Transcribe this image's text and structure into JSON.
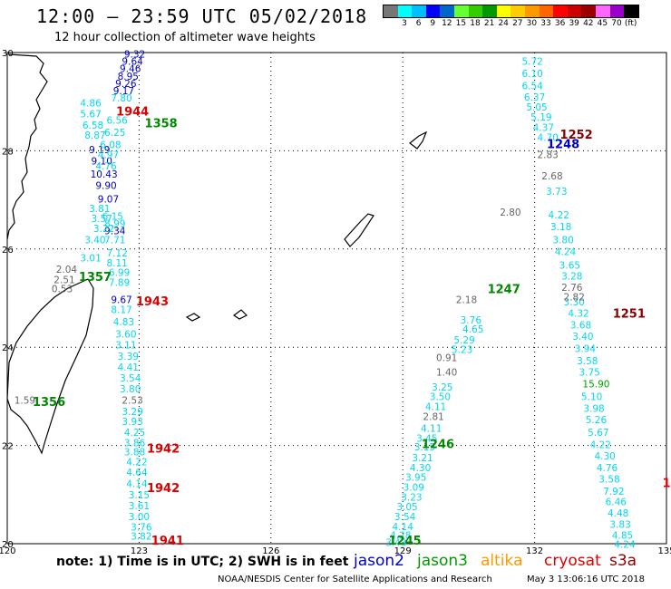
{
  "header": {
    "title": "12:00 – 23:59 UTC 05/02/2018",
    "subtitle": "12 hour collection of altimeter wave heights"
  },
  "scale": {
    "colors": [
      "#777777",
      "#00ffff",
      "#00bfff",
      "#0000ff",
      "#0066cc",
      "#66ff33",
      "#33cc00",
      "#009900",
      "#ffff00",
      "#ffcc00",
      "#ff9900",
      "#ff6600",
      "#ff0000",
      "#cc0000",
      "#990000",
      "#ff66ff",
      "#9900cc",
      "#000000"
    ],
    "labels": [
      "3",
      "6",
      "9",
      "12",
      "15",
      "18",
      "21",
      "24",
      "27",
      "30",
      "33",
      "36",
      "39",
      "42",
      "45",
      "70",
      "(ft)"
    ]
  },
  "map": {
    "lon_range": [
      120,
      135
    ],
    "lat_range": [
      20,
      30
    ],
    "lon_ticks": [
      "120",
      "123",
      "126",
      "129",
      "132",
      "135"
    ],
    "lat_ticks": [
      "30",
      "28",
      "26",
      "24",
      "22",
      "20"
    ],
    "grid": "dotted"
  },
  "tracks": [
    {
      "satellite": "jason2",
      "color": "#0000cc",
      "points": [
        {
          "lon": 122.9,
          "lat": 29.9,
          "v": "9.32"
        },
        {
          "lon": 122.85,
          "lat": 29.75,
          "v": "9.64"
        },
        {
          "lon": 122.8,
          "lat": 29.6,
          "v": "9.46"
        },
        {
          "lon": 122.75,
          "lat": 29.45,
          "v": "8.95"
        },
        {
          "lon": 122.7,
          "lat": 29.3,
          "v": "9.26"
        },
        {
          "lon": 122.65,
          "lat": 29.15,
          "v": "9.17"
        },
        {
          "lon": 122.1,
          "lat": 27.95,
          "v": "9.19"
        },
        {
          "lon": 122.15,
          "lat": 27.72,
          "v": "9.10"
        },
        {
          "lon": 122.2,
          "lat": 27.45,
          "v": "10.43"
        },
        {
          "lon": 122.25,
          "lat": 27.22,
          "v": "9.90"
        },
        {
          "lon": 122.3,
          "lat": 26.95,
          "v": "9.07"
        },
        {
          "lon": 122.45,
          "lat": 26.3,
          "v": "9.34"
        },
        {
          "lon": 122.6,
          "lat": 24.9,
          "v": "9.67"
        }
      ]
    },
    {
      "satellite": "jason3",
      "color": "#00d8f0",
      "points": [
        {
          "lon": 122.6,
          "lat": 29.0,
          "v": "7.80"
        },
        {
          "lon": 121.9,
          "lat": 28.9,
          "v": "4.86"
        },
        {
          "lon": 121.9,
          "lat": 28.68,
          "v": "5.67"
        },
        {
          "lon": 121.95,
          "lat": 28.45,
          "v": "6.58"
        },
        {
          "lon": 122.0,
          "lat": 28.25,
          "v": "8.87"
        },
        {
          "lon": 122.5,
          "lat": 28.55,
          "v": "6.56"
        },
        {
          "lon": 122.45,
          "lat": 28.3,
          "v": "6.25"
        },
        {
          "lon": 122.35,
          "lat": 28.05,
          "v": "6.08"
        },
        {
          "lon": 122.3,
          "lat": 27.85,
          "v": "4.97"
        },
        {
          "lon": 122.25,
          "lat": 27.62,
          "v": "4.76"
        },
        {
          "lon": 122.1,
          "lat": 26.75,
          "v": "3.81"
        },
        {
          "lon": 122.15,
          "lat": 26.55,
          "v": "3.57"
        },
        {
          "lon": 122.2,
          "lat": 26.35,
          "v": "3.22"
        },
        {
          "lon": 122.4,
          "lat": 26.6,
          "v": "6.15"
        },
        {
          "lon": 122.45,
          "lat": 26.45,
          "v": "8.99"
        },
        {
          "lon": 122.0,
          "lat": 26.12,
          "v": "3.40"
        },
        {
          "lon": 122.45,
          "lat": 26.12,
          "v": "7.71"
        },
        {
          "lon": 121.9,
          "lat": 25.75,
          "v": "3.01"
        },
        {
          "lon": 122.5,
          "lat": 25.85,
          "v": "7.12"
        },
        {
          "lon": 122.5,
          "lat": 25.65,
          "v": "8.11"
        },
        {
          "lon": 122.55,
          "lat": 25.45,
          "v": "6.99"
        },
        {
          "lon": 122.55,
          "lat": 25.25,
          "v": "7.89"
        },
        {
          "lon": 122.6,
          "lat": 24.7,
          "v": "8.17"
        },
        {
          "lon": 122.65,
          "lat": 24.45,
          "v": "4.83"
        },
        {
          "lon": 122.7,
          "lat": 24.2,
          "v": "3.60"
        },
        {
          "lon": 122.7,
          "lat": 23.98,
          "v": "3.11"
        },
        {
          "lon": 122.75,
          "lat": 23.75,
          "v": "3.39"
        },
        {
          "lon": 122.75,
          "lat": 23.52,
          "v": "4.41"
        },
        {
          "lon": 122.8,
          "lat": 23.3,
          "v": "3.54"
        },
        {
          "lon": 122.8,
          "lat": 23.08,
          "v": "3.80"
        },
        {
          "lon": 122.85,
          "lat": 22.62,
          "v": "3.29"
        },
        {
          "lon": 122.85,
          "lat": 22.42,
          "v": "3.93"
        },
        {
          "lon": 122.9,
          "lat": 22.2,
          "v": "4.25"
        },
        {
          "lon": 122.9,
          "lat": 21.98,
          "v": "3.86"
        },
        {
          "lon": 122.9,
          "lat": 21.8,
          "v": "3.88"
        },
        {
          "lon": 122.95,
          "lat": 21.6,
          "v": "4.22"
        },
        {
          "lon": 122.95,
          "lat": 21.38,
          "v": "4.64"
        },
        {
          "lon": 122.95,
          "lat": 21.15,
          "v": "4.14"
        },
        {
          "lon": 123.0,
          "lat": 20.92,
          "v": "3.15"
        },
        {
          "lon": 123.0,
          "lat": 20.7,
          "v": "3.61"
        },
        {
          "lon": 123.0,
          "lat": 20.48,
          "v": "3.00"
        },
        {
          "lon": 123.05,
          "lat": 20.27,
          "v": "3.76"
        },
        {
          "lon": 123.05,
          "lat": 20.08,
          "v": "3.82"
        },
        {
          "lon": 131.95,
          "lat": 29.75,
          "v": "5.72"
        },
        {
          "lon": 131.95,
          "lat": 29.5,
          "v": "6.10"
        },
        {
          "lon": 131.95,
          "lat": 29.25,
          "v": "6.54"
        },
        {
          "lon": 132.0,
          "lat": 29.02,
          "v": "6.37"
        },
        {
          "lon": 132.05,
          "lat": 28.82,
          "v": "5.05"
        },
        {
          "lon": 132.15,
          "lat": 28.62,
          "v": "5.19"
        },
        {
          "lon": 132.2,
          "lat": 28.4,
          "v": "4.37"
        },
        {
          "lon": 132.3,
          "lat": 28.2,
          "v": "4.70"
        },
        {
          "lon": 132.5,
          "lat": 27.1,
          "v": "3.73"
        },
        {
          "lon": 132.55,
          "lat": 26.62,
          "v": "4.22"
        },
        {
          "lon": 132.6,
          "lat": 26.38,
          "v": "3.18"
        },
        {
          "lon": 132.65,
          "lat": 26.12,
          "v": "3.80"
        },
        {
          "lon": 132.7,
          "lat": 25.88,
          "v": "4.24"
        },
        {
          "lon": 132.8,
          "lat": 25.6,
          "v": "3.65"
        },
        {
          "lon": 132.85,
          "lat": 25.38,
          "v": "3.28"
        },
        {
          "lon": 132.9,
          "lat": 24.85,
          "v": "3.30"
        },
        {
          "lon": 133.0,
          "lat": 24.62,
          "v": "4.32"
        },
        {
          "lon": 133.05,
          "lat": 24.38,
          "v": "3.68"
        },
        {
          "lon": 133.1,
          "lat": 24.15,
          "v": "3.40"
        },
        {
          "lon": 133.15,
          "lat": 23.9,
          "v": "3.94"
        },
        {
          "lon": 133.2,
          "lat": 23.65,
          "v": "3.58"
        },
        {
          "lon": 133.25,
          "lat": 23.42,
          "v": "3.75"
        },
        {
          "lon": 133.3,
          "lat": 22.92,
          "v": "5.10"
        },
        {
          "lon": 133.35,
          "lat": 22.68,
          "v": "3.98"
        },
        {
          "lon": 133.4,
          "lat": 22.45,
          "v": "5.26"
        },
        {
          "lon": 133.45,
          "lat": 22.2,
          "v": "5.67"
        },
        {
          "lon": 133.5,
          "lat": 21.95,
          "v": "4.22"
        },
        {
          "lon": 133.6,
          "lat": 21.72,
          "v": "4.30"
        },
        {
          "lon": 133.65,
          "lat": 21.48,
          "v": "4.76"
        },
        {
          "lon": 133.7,
          "lat": 21.25,
          "v": "3.58"
        },
        {
          "lon": 133.8,
          "lat": 21.0,
          "v": "7.92"
        },
        {
          "lon": 133.85,
          "lat": 20.78,
          "v": "6.46"
        },
        {
          "lon": 133.9,
          "lat": 20.55,
          "v": "4.48"
        },
        {
          "lon": 133.95,
          "lat": 20.32,
          "v": "3.83"
        },
        {
          "lon": 134.0,
          "lat": 20.1,
          "v": "4.85"
        },
        {
          "lon": 134.05,
          "lat": 19.92,
          "v": "4.24"
        },
        {
          "lon": 130.55,
          "lat": 24.48,
          "v": "3.76"
        },
        {
          "lon": 130.6,
          "lat": 24.3,
          "v": "4.65"
        },
        {
          "lon": 130.4,
          "lat": 24.08,
          "v": "5.29"
        },
        {
          "lon": 130.35,
          "lat": 23.88,
          "v": "5.23"
        },
        {
          "lon": 129.9,
          "lat": 23.12,
          "v": "3.25"
        },
        {
          "lon": 129.85,
          "lat": 22.92,
          "v": "3.50"
        },
        {
          "lon": 129.75,
          "lat": 22.72,
          "v": "4.11"
        },
        {
          "lon": 129.65,
          "lat": 22.28,
          "v": "4.11"
        },
        {
          "lon": 129.55,
          "lat": 22.08,
          "v": "3.45"
        },
        {
          "lon": 129.5,
          "lat": 21.9,
          "v": "3.15"
        },
        {
          "lon": 129.45,
          "lat": 21.68,
          "v": "3.21"
        },
        {
          "lon": 129.4,
          "lat": 21.48,
          "v": "4.30"
        },
        {
          "lon": 129.3,
          "lat": 21.28,
          "v": "3.95"
        },
        {
          "lon": 129.25,
          "lat": 21.08,
          "v": "3.09"
        },
        {
          "lon": 129.2,
          "lat": 20.88,
          "v": "3.23"
        },
        {
          "lon": 129.1,
          "lat": 20.68,
          "v": "3.05"
        },
        {
          "lon": 129.05,
          "lat": 20.48,
          "v": "3.54"
        },
        {
          "lon": 129.0,
          "lat": 20.28,
          "v": "4.14"
        },
        {
          "lon": 128.95,
          "lat": 20.1,
          "v": "4.28"
        },
        {
          "lon": 128.85,
          "lat": 19.95,
          "v": "3.43"
        }
      ]
    },
    {
      "satellite": "jason3-gray",
      "color": "#666666",
      "points": [
        {
          "lon": 121.35,
          "lat": 25.52,
          "v": "2.04"
        },
        {
          "lon": 121.3,
          "lat": 25.3,
          "v": "2.51"
        },
        {
          "lon": 121.25,
          "lat": 25.12,
          "v": "0.53"
        },
        {
          "lon": 122.85,
          "lat": 22.85,
          "v": "2.53"
        },
        {
          "lon": 120.4,
          "lat": 22.85,
          "v": "1.59"
        },
        {
          "lon": 132.3,
          "lat": 27.85,
          "v": "2.83"
        },
        {
          "lon": 132.4,
          "lat": 27.42,
          "v": "2.68"
        },
        {
          "lon": 131.45,
          "lat": 26.68,
          "v": "2.80"
        },
        {
          "lon": 132.85,
          "lat": 25.15,
          "v": "2.76"
        },
        {
          "lon": 132.9,
          "lat": 24.95,
          "v": "2.82"
        },
        {
          "lon": 130.45,
          "lat": 24.9,
          "v": "2.18"
        },
        {
          "lon": 130.0,
          "lat": 23.72,
          "v": "0.91"
        },
        {
          "lon": 130.0,
          "lat": 23.42,
          "v": "1.40"
        },
        {
          "lon": 129.7,
          "lat": 22.52,
          "v": "2.81"
        }
      ]
    },
    {
      "satellite": "jason3-green",
      "color": "#00a000",
      "points": [
        {
          "lon": 133.4,
          "lat": 23.18,
          "v": "15.90"
        }
      ]
    }
  ],
  "time_labels": [
    {
      "lon": 122.85,
      "lat": 28.72,
      "v": "1944",
      "color": "#dd0000"
    },
    {
      "lon": 123.5,
      "lat": 28.48,
      "v": "1358",
      "color": "#008800"
    },
    {
      "lon": 132.95,
      "lat": 28.25,
      "v": "1252",
      "color": "#880000"
    },
    {
      "lon": 132.65,
      "lat": 28.05,
      "v": "1248",
      "color": "#0000cc"
    },
    {
      "lon": 122.0,
      "lat": 25.35,
      "v": "1357",
      "color": "#008800"
    },
    {
      "lon": 131.3,
      "lat": 25.1,
      "v": "1247",
      "color": "#008800"
    },
    {
      "lon": 123.3,
      "lat": 24.85,
      "v": "1943",
      "color": "#dd0000"
    },
    {
      "lon": 134.15,
      "lat": 24.6,
      "v": "1251",
      "color": "#880000"
    },
    {
      "lon": 120.95,
      "lat": 22.8,
      "v": "1356",
      "color": "#008800"
    },
    {
      "lon": 129.8,
      "lat": 21.95,
      "v": "1246",
      "color": "#008800"
    },
    {
      "lon": 123.55,
      "lat": 21.85,
      "v": "1942",
      "color": "#dd0000"
    },
    {
      "lon": 123.55,
      "lat": 21.05,
      "v": "1942",
      "color": "#dd0000"
    },
    {
      "lon": 123.65,
      "lat": 19.98,
      "v": "1941",
      "color": "#dd0000"
    },
    {
      "lon": 129.05,
      "lat": 19.98,
      "v": "1245",
      "color": "#008800"
    },
    {
      "lon": 135.0,
      "lat": 21.15,
      "v": "1",
      "color": "#dd0000"
    }
  ],
  "footer": {
    "note": "note:  1) Time is in UTC;  2) SWH is in feet",
    "satellites": [
      {
        "name": "jason2",
        "color": "#0000cc"
      },
      {
        "name": "jason3",
        "color": "#009900"
      },
      {
        "name": "altika",
        "color": "#ff9900"
      },
      {
        "name": "cryosat",
        "color": "#dd0000"
      },
      {
        "name": "s3a",
        "color": "#880000"
      }
    ],
    "credit": "NOAA/NESDIS Center for Satellite Applications and Research",
    "timestamp": "May  3 13:06:16 UTC 2018"
  }
}
